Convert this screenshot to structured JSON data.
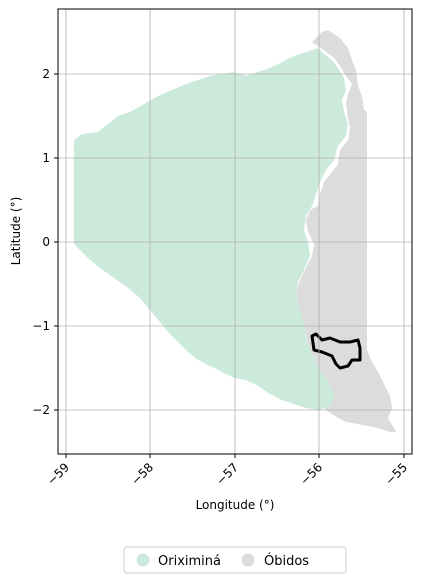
{
  "chart_data": {
    "type": "map",
    "title": "",
    "xlabel": "Longitude (°)",
    "ylabel": "Latitude (°)",
    "xlim": [
      -59.1,
      -54.9
    ],
    "ylim": [
      -2.5,
      2.8
    ],
    "grid": true,
    "x_ticks": [
      "−59",
      "−58",
      "−57",
      "−56",
      "−55"
    ],
    "y_ticks": [
      "−2",
      "−1",
      "0",
      "1",
      "2"
    ],
    "legend": {
      "placement": "bottom-center",
      "entries": [
        {
          "name": "Oriximiná",
          "color": "#cceadb"
        },
        {
          "name": "Óbidos",
          "color": "#dcdcdc"
        }
      ]
    },
    "regions": [
      {
        "name": "Oriximiná",
        "color": "#cceadb"
      },
      {
        "name": "Óbidos",
        "color": "#dcdcdc"
      }
    ],
    "highlight_outline": {
      "color": "#000000",
      "center_lon": -55.75,
      "center_lat": -1.3
    }
  }
}
